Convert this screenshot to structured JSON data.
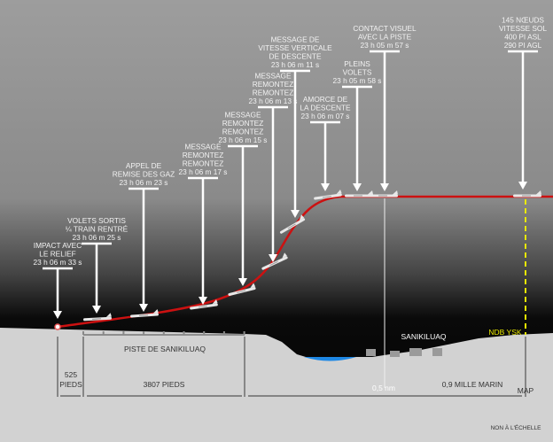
{
  "callouts": [
    {
      "lines": [
        "IMPACT AVEC",
        "LE RELIEF",
        "23 h 06 m 33 s"
      ]
    },
    {
      "lines": [
        "VOLETS SORTIS",
        "¼ TRAIN RENTRÉ",
        "23 h 06 m 25 s"
      ]
    },
    {
      "lines": [
        "APPEL DE",
        "REMISE DES GAZ",
        "23 h 06 m 23 s"
      ]
    },
    {
      "lines": [
        "MESSAGE",
        "REMONTEZ",
        "REMONTEZ",
        "23 h 06 m 17 s"
      ]
    },
    {
      "lines": [
        "MESSAGE",
        "REMONTEZ",
        "REMONTEZ",
        "23 h 06 m 15 s"
      ]
    },
    {
      "lines": [
        "MESSAGE",
        "REMONTEZ",
        "REMONTEZ",
        "23 h 06 m 13 s"
      ]
    },
    {
      "lines": [
        "MESSAGE DE",
        "VITESSE VERTICALE",
        "DE DESCENTE",
        "23 h 06 m 11 s"
      ]
    },
    {
      "lines": [
        "AMORCE DE",
        "LA DESCENTE",
        "23 h 06 m 07 s"
      ]
    },
    {
      "lines": [
        "PLEINS",
        "VOLETS",
        "23 h 05 m 58 s"
      ]
    },
    {
      "lines": [
        "CONTACT VISUEL",
        "AVEC LA PISTE",
        "23 h 05 m 57 s"
      ]
    },
    {
      "lines": [
        "145 NŒUDS",
        "VITESSE SOL",
        "400 PI ASL",
        "290 PI AGL"
      ]
    }
  ],
  "ground": {
    "runway_label": "PISTE DE SANIKILUAQ",
    "town_label": "SANIKILUAQ",
    "ndb_label": "NDB YSK",
    "dist_525": [
      "525",
      "PIEDS"
    ],
    "dist_3807": "3807 PIEDS",
    "dist_09": "0,9 MILLE MARIN",
    "half_nm": "0,5 nm",
    "map_label": "MAP",
    "scale_note": "NON À L'ÉCHELLE"
  },
  "colors": {
    "flight_path": "#cc1111",
    "ndb": "#e8e800",
    "lake": "#1e88e5"
  }
}
